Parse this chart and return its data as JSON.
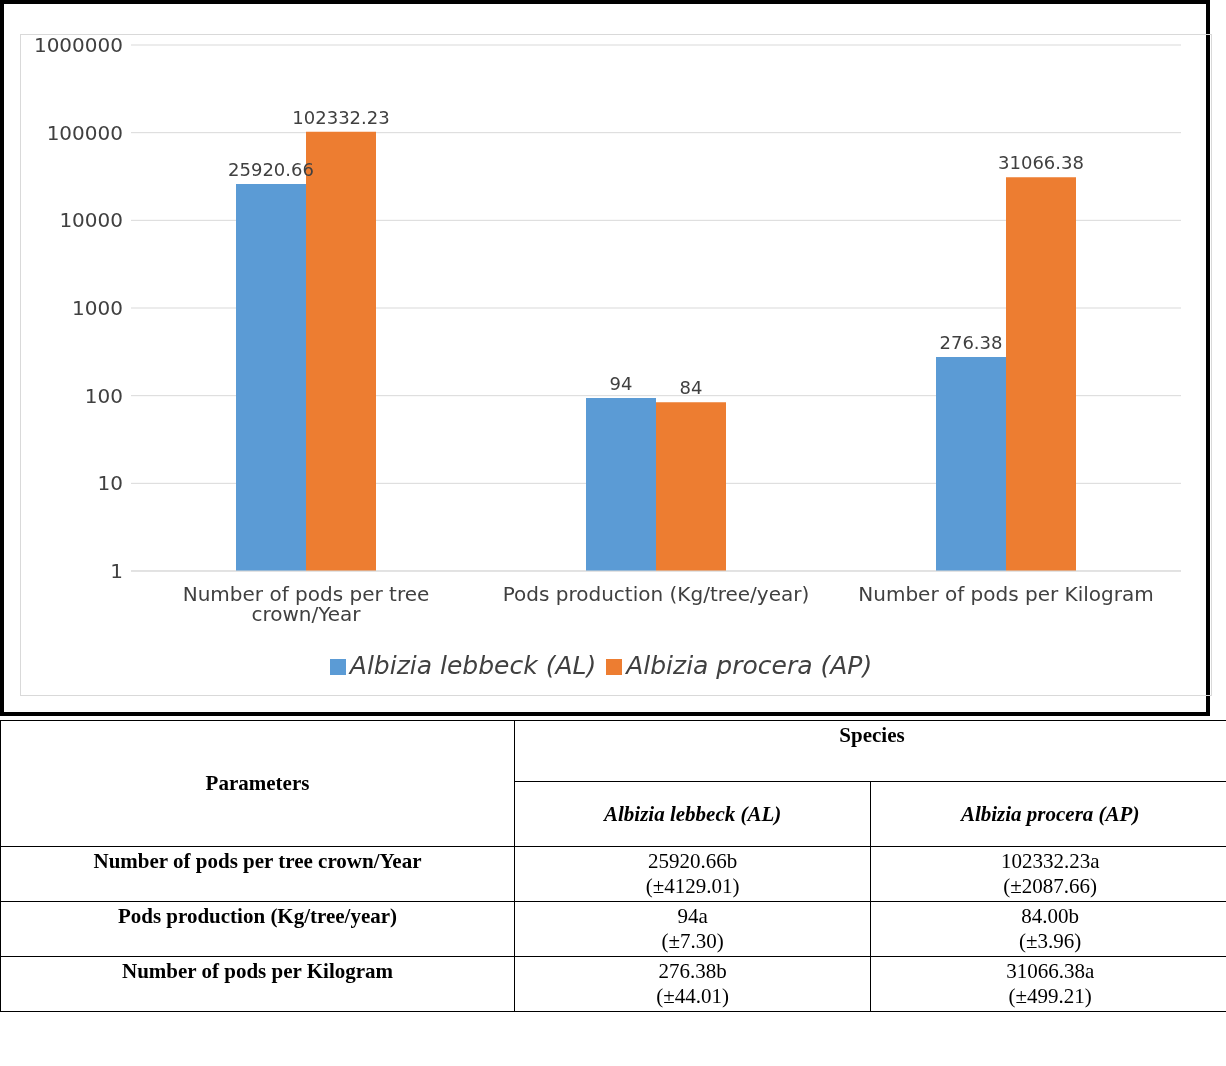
{
  "chart_data": {
    "type": "bar",
    "categories": [
      "Number of pods per tree crown/Year",
      "Pods production (Kg/tree/year)",
      "Number of pods per Kilogram"
    ],
    "series": [
      {
        "name": "Albizia lebbeck (AL)",
        "color": "#5b9bd5",
        "values": [
          25920.66,
          94,
          276.38
        ]
      },
      {
        "name": "Albizia procera (AP)",
        "color": "#ed7d31",
        "values": [
          102332.23,
          84,
          31066.38
        ]
      }
    ],
    "log": "y",
    "ylim": [
      1,
      1000000
    ],
    "yticks": [
      1,
      10,
      100,
      1000,
      10000,
      100000,
      1000000
    ],
    "grid": "y",
    "legend": "bottom",
    "data_labels": true,
    "annotations": [
      "Parameters",
      "Species",
      "Albizia lebbeck (AL)",
      "Albizia procera (AP)",
      "Number  of pods per tree crown/Year",
      "25920.66b",
      "(±4129.01)",
      "102332.23a",
      "(±2087.66)",
      "Pods production  (Kg/tree/year)",
      "94a",
      "(±7.30)",
      "84.00b",
      "(±3.96)",
      "Number  of pods per Kilogram",
      "276.38b",
      "(±44.01)",
      "31066.38a",
      "(±499.21)"
    ]
  }
}
